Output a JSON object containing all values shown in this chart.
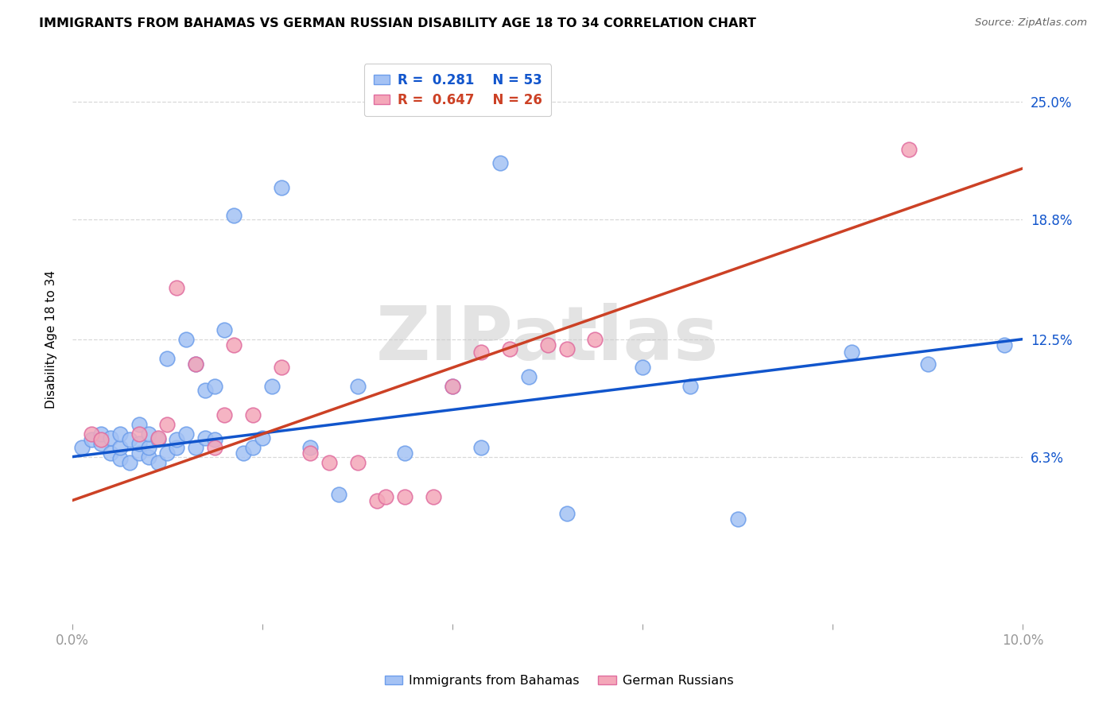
{
  "title": "IMMIGRANTS FROM BAHAMAS VS GERMAN RUSSIAN DISABILITY AGE 18 TO 34 CORRELATION CHART",
  "source": "Source: ZipAtlas.com",
  "ylabel": "Disability Age 18 to 34",
  "xlim": [
    0.0,
    0.1
  ],
  "ylim": [
    -0.025,
    0.275
  ],
  "xticks": [
    0.0,
    0.02,
    0.04,
    0.06,
    0.08,
    0.1
  ],
  "xticklabels": [
    "0.0%",
    "",
    "",
    "",
    "",
    "10.0%"
  ],
  "ytick_labels": [
    "6.3%",
    "12.5%",
    "18.8%",
    "25.0%"
  ],
  "ytick_values": [
    0.063,
    0.125,
    0.188,
    0.25
  ],
  "blue_R": "0.281",
  "blue_N": "53",
  "pink_R": "0.647",
  "pink_N": "26",
  "blue_color": "#a4c2f4",
  "pink_color": "#f4a7b9",
  "blue_edge_color": "#6d9eeb",
  "pink_edge_color": "#e06c9f",
  "blue_line_color": "#1155cc",
  "pink_line_color": "#cc4125",
  "tick_label_color": "#1155cc",
  "watermark": "ZIPatlas",
  "blue_scatter_x": [
    0.001,
    0.002,
    0.003,
    0.003,
    0.004,
    0.004,
    0.005,
    0.005,
    0.005,
    0.006,
    0.006,
    0.007,
    0.007,
    0.007,
    0.008,
    0.008,
    0.008,
    0.009,
    0.009,
    0.01,
    0.01,
    0.011,
    0.011,
    0.012,
    0.012,
    0.013,
    0.013,
    0.014,
    0.014,
    0.015,
    0.015,
    0.016,
    0.017,
    0.018,
    0.019,
    0.02,
    0.021,
    0.022,
    0.025,
    0.028,
    0.03,
    0.035,
    0.04,
    0.043,
    0.045,
    0.048,
    0.052,
    0.06,
    0.065,
    0.07,
    0.082,
    0.09,
    0.098
  ],
  "blue_scatter_y": [
    0.068,
    0.072,
    0.07,
    0.075,
    0.065,
    0.073,
    0.062,
    0.068,
    0.075,
    0.06,
    0.072,
    0.065,
    0.07,
    0.08,
    0.063,
    0.068,
    0.075,
    0.06,
    0.072,
    0.065,
    0.115,
    0.068,
    0.072,
    0.075,
    0.125,
    0.068,
    0.112,
    0.098,
    0.073,
    0.1,
    0.072,
    0.13,
    0.19,
    0.065,
    0.068,
    0.073,
    0.1,
    0.205,
    0.068,
    0.043,
    0.1,
    0.065,
    0.1,
    0.068,
    0.218,
    0.105,
    0.033,
    0.11,
    0.1,
    0.03,
    0.118,
    0.112,
    0.122
  ],
  "pink_scatter_x": [
    0.002,
    0.003,
    0.007,
    0.009,
    0.01,
    0.011,
    0.013,
    0.015,
    0.016,
    0.017,
    0.019,
    0.022,
    0.025,
    0.027,
    0.03,
    0.032,
    0.033,
    0.035,
    0.038,
    0.04,
    0.043,
    0.046,
    0.05,
    0.052,
    0.055,
    0.088
  ],
  "pink_scatter_y": [
    0.075,
    0.072,
    0.075,
    0.073,
    0.08,
    0.152,
    0.112,
    0.068,
    0.085,
    0.122,
    0.085,
    0.11,
    0.065,
    0.06,
    0.06,
    0.04,
    0.042,
    0.042,
    0.042,
    0.1,
    0.118,
    0.12,
    0.122,
    0.12,
    0.125,
    0.225
  ],
  "background_color": "#ffffff",
  "grid_color": "#d9d9d9"
}
